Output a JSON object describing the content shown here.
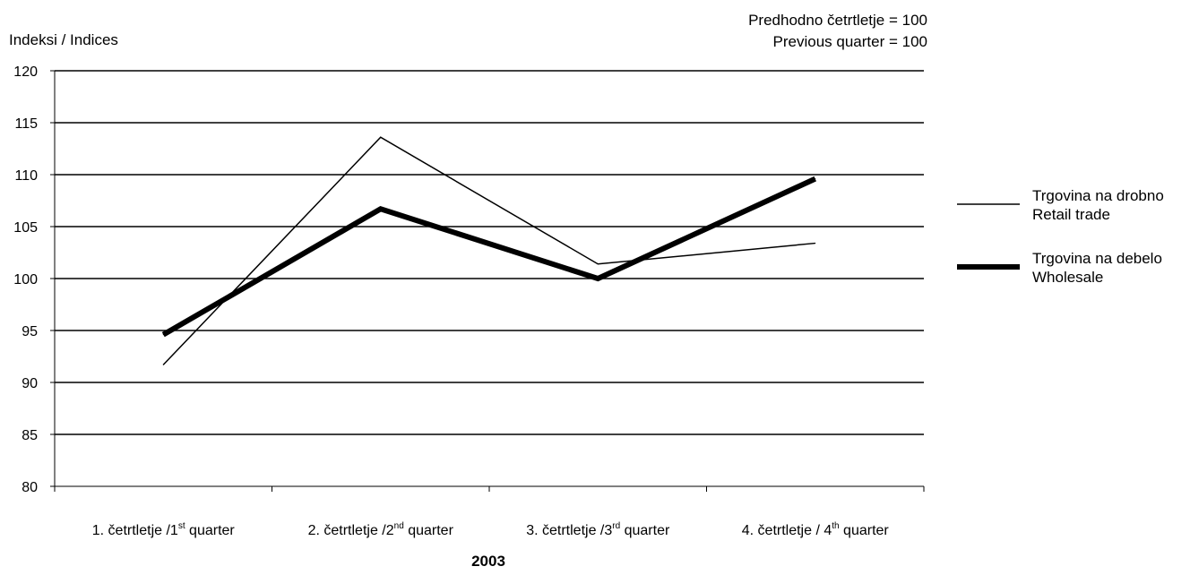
{
  "chart_data": {
    "type": "line",
    "ylabel": "Indeksi / Indices",
    "note_line1": "Predhodno četrtletje = 100",
    "note_line2": "Previous quarter = 100",
    "xlabel": "2003",
    "ylim": [
      80,
      120
    ],
    "yticks": [
      80,
      85,
      90,
      95,
      100,
      105,
      110,
      115,
      120
    ],
    "grid": true,
    "legend_position": "right",
    "categories": [
      {
        "pre": "1. četrtletje /1",
        "sup": "st",
        "post": " quarter"
      },
      {
        "pre": "2. četrtletje /2",
        "sup": "nd",
        "post": " quarter"
      },
      {
        "pre": "3. četrtletje /3",
        "sup": "rd",
        "post": " quarter"
      },
      {
        "pre": "4. četrtletje / 4",
        "sup": "th",
        "post": " quarter"
      }
    ],
    "series": [
      {
        "name_line1": "Trgovina na drobno",
        "name_line2": "Retail trade",
        "values": [
          91.7,
          113.6,
          101.4,
          103.4
        ],
        "color": "#000000",
        "style": "thin"
      },
      {
        "name_line1": "Trgovina na debelo",
        "name_line2": "Wholesale",
        "values": [
          94.6,
          106.7,
          100.0,
          109.6
        ],
        "color": "#000000",
        "style": "thick"
      }
    ]
  }
}
